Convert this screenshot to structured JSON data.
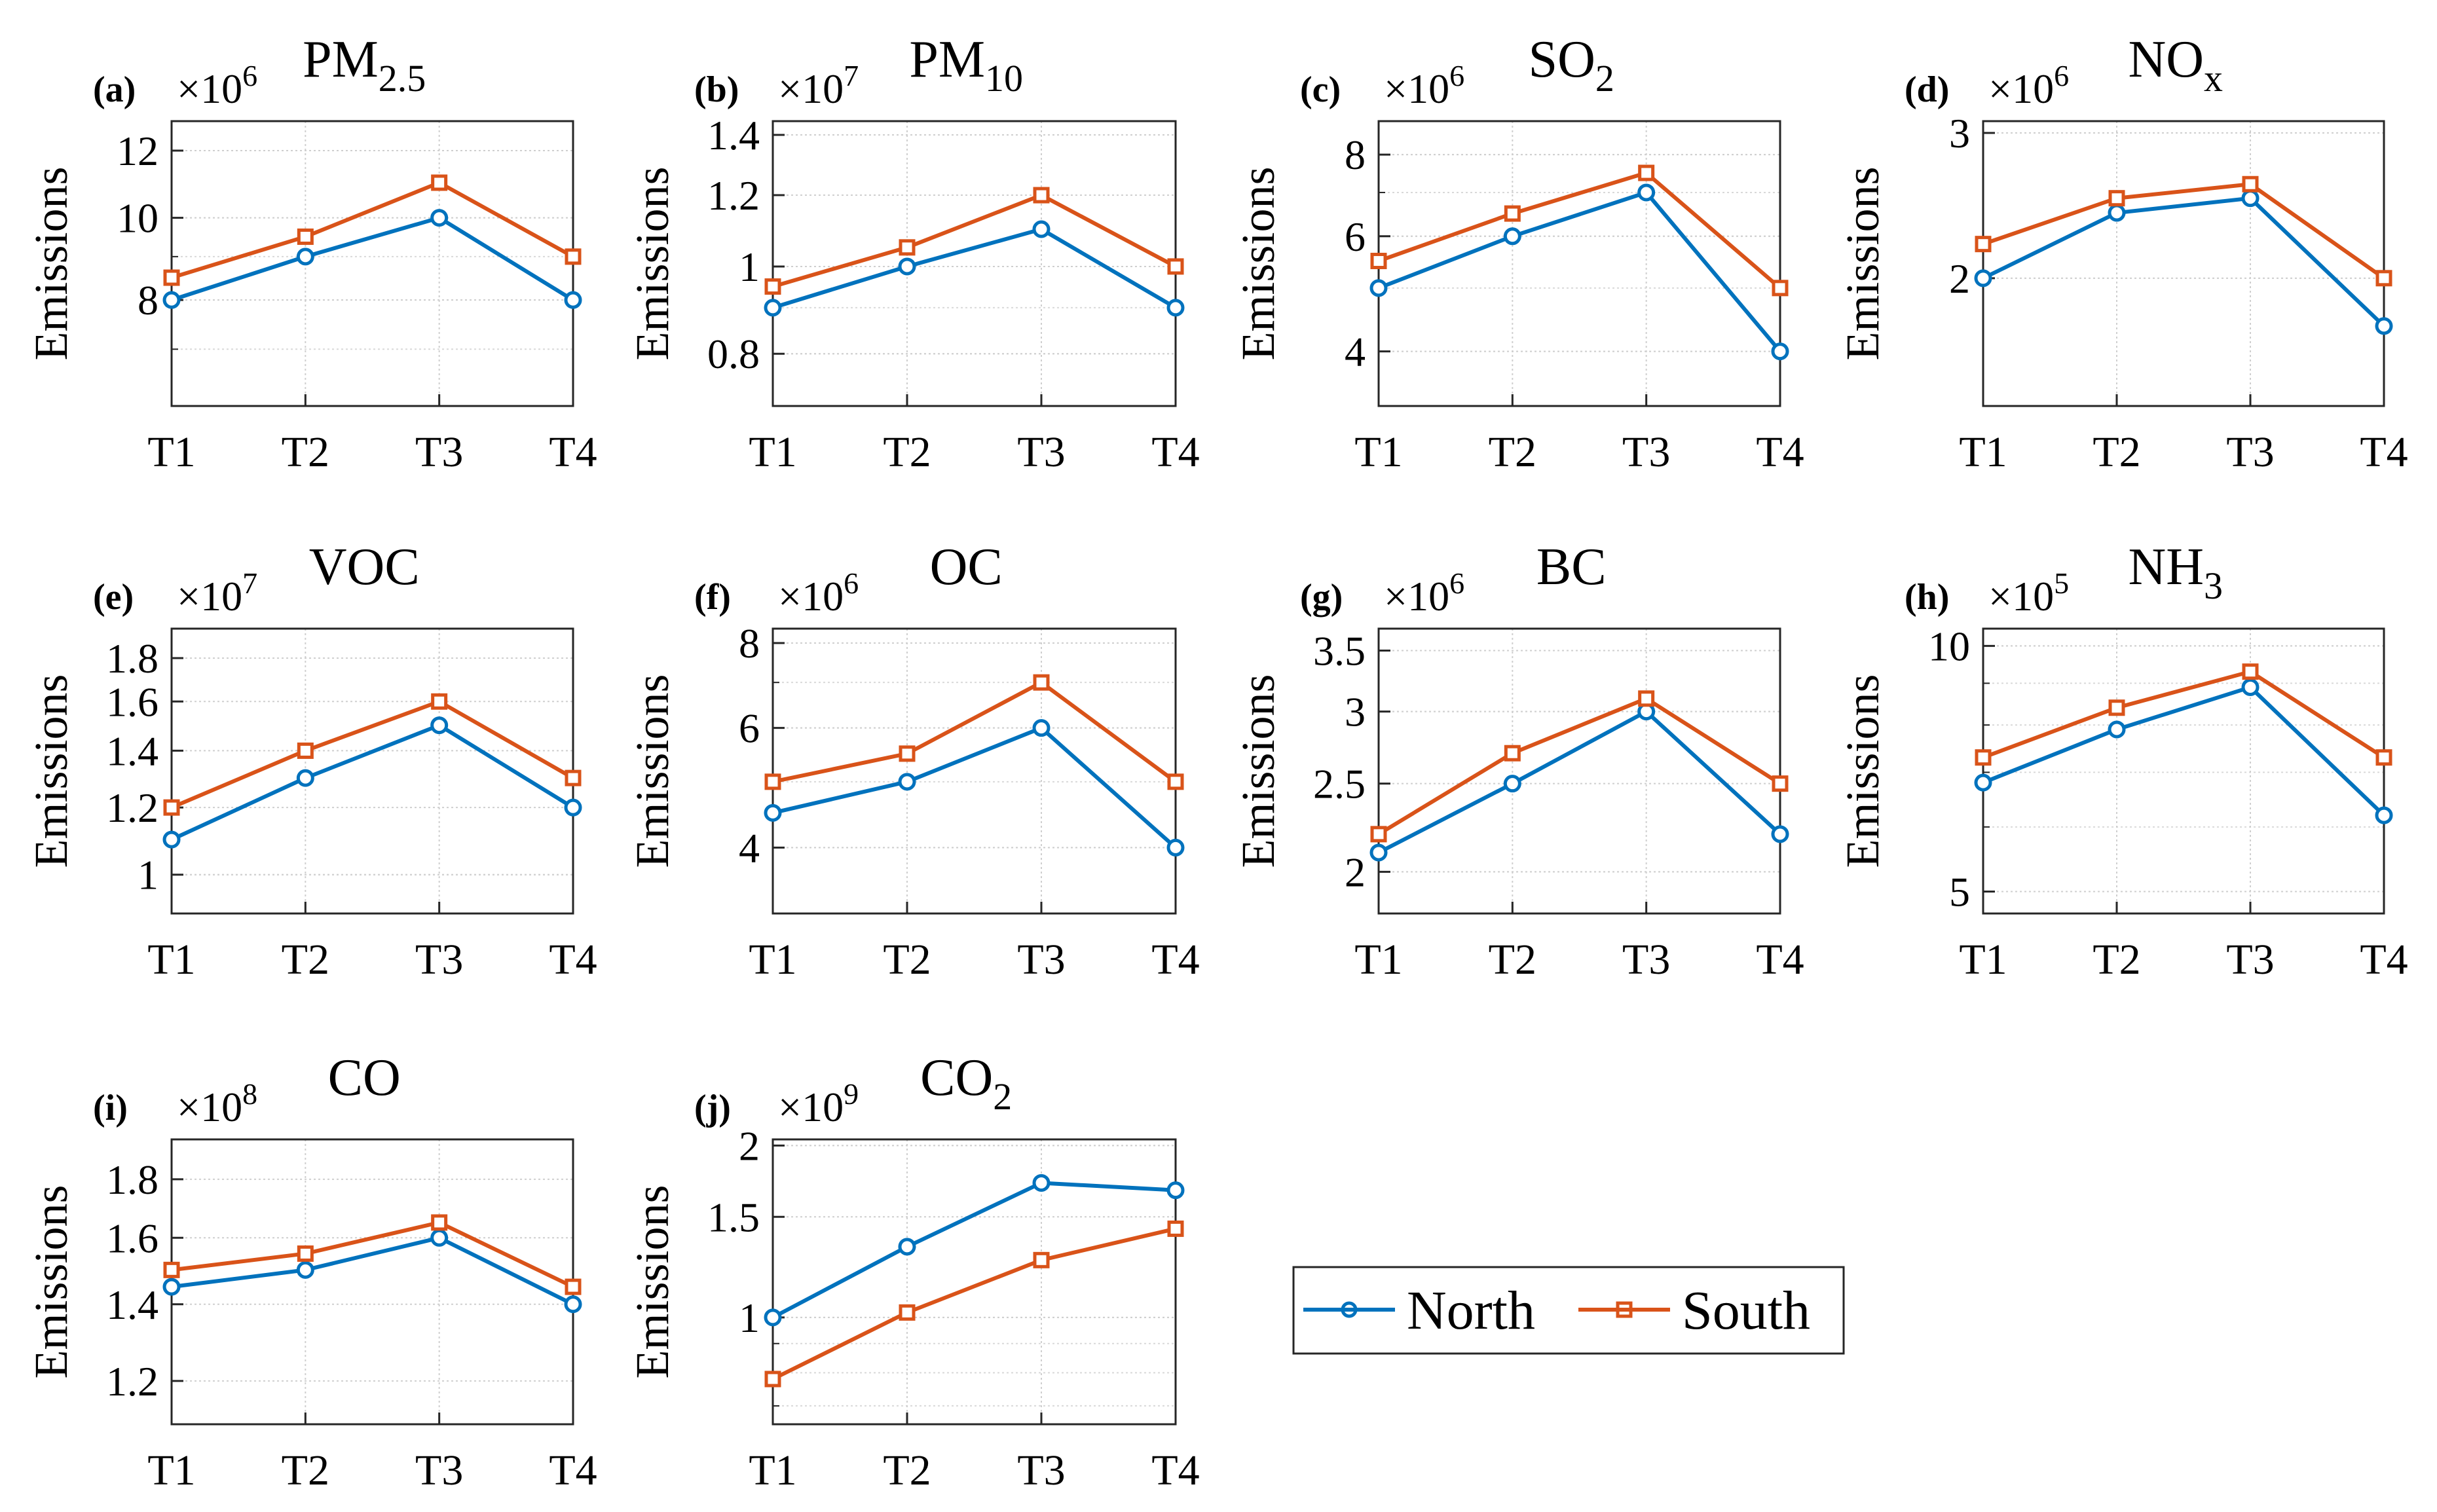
{
  "colors": {
    "north": "#0072BD",
    "south": "#D95319",
    "axis": "#262626",
    "grid": "#D9D9D9"
  },
  "legend": {
    "items": [
      "North",
      "South"
    ]
  },
  "chart_data": [
    {
      "type": "line",
      "panel_label": "(a)",
      "title": "PM",
      "title_sub": "2.5",
      "exponent_label": "×10",
      "exponent_power": "6",
      "ylabel": "Emissions",
      "categories": [
        "T1",
        "T2",
        "T3",
        "T4"
      ],
      "ylim": [
        6,
        13
      ],
      "yticks": [
        8,
        10,
        12
      ],
      "scale": "log",
      "grid": true,
      "series": [
        {
          "name": "North",
          "values": [
            8.0,
            9.0,
            10.0,
            8.0
          ]
        },
        {
          "name": "South",
          "values": [
            8.5,
            9.5,
            11.0,
            9.0
          ]
        }
      ]
    },
    {
      "type": "line",
      "panel_label": "(b)",
      "title": "PM",
      "title_sub": "10",
      "exponent_label": "×10",
      "exponent_power": "7",
      "ylabel": "Emissions",
      "categories": [
        "T1",
        "T2",
        "T3",
        "T4"
      ],
      "ylim": [
        0.7,
        1.45
      ],
      "yticks": [
        0.8,
        1.0,
        1.2,
        1.4
      ],
      "ytick_labels": [
        "0.8",
        "1",
        "1.2",
        "1.4"
      ],
      "scale": "log",
      "grid": true,
      "series": [
        {
          "name": "North",
          "values": [
            0.9,
            1.0,
            1.1,
            0.9
          ]
        },
        {
          "name": "South",
          "values": [
            0.95,
            1.05,
            1.2,
            1.0
          ]
        }
      ]
    },
    {
      "type": "line",
      "panel_label": "(c)",
      "title": "SO",
      "title_sub": "2",
      "exponent_label": "×10",
      "exponent_power": "6",
      "ylabel": "Emissions",
      "categories": [
        "T1",
        "T2",
        "T3",
        "T4"
      ],
      "ylim": [
        3.3,
        9.0
      ],
      "yticks": [
        4,
        6,
        8
      ],
      "scale": "log",
      "grid": true,
      "series": [
        {
          "name": "North",
          "values": [
            5.0,
            6.0,
            7.0,
            4.0
          ]
        },
        {
          "name": "South",
          "values": [
            5.5,
            6.5,
            7.5,
            5.0
          ]
        }
      ]
    },
    {
      "type": "line",
      "panel_label": "(d)",
      "title": "NO",
      "title_sub": "x",
      "exponent_label": "×10",
      "exponent_power": "6",
      "ylabel": "Emissions",
      "categories": [
        "T1",
        "T2",
        "T3",
        "T4"
      ],
      "ylim": [
        1.4,
        3.1
      ],
      "yticks": [
        2,
        3
      ],
      "scale": "log",
      "grid": true,
      "series": [
        {
          "name": "North",
          "values": [
            2.0,
            2.4,
            2.5,
            1.75
          ]
        },
        {
          "name": "South",
          "values": [
            2.2,
            2.5,
            2.6,
            2.0
          ]
        }
      ]
    },
    {
      "type": "line",
      "panel_label": "(e)",
      "title": "VOC",
      "title_sub": "",
      "exponent_label": "×10",
      "exponent_power": "7",
      "ylabel": "Emissions",
      "categories": [
        "T1",
        "T2",
        "T3",
        "T4"
      ],
      "ylim": [
        0.9,
        1.95
      ],
      "yticks": [
        1.0,
        1.2,
        1.4,
        1.6,
        1.8
      ],
      "ytick_labels": [
        "1",
        "1.2",
        "1.4",
        "1.6",
        "1.8"
      ],
      "scale": "log",
      "grid": true,
      "series": [
        {
          "name": "North",
          "values": [
            1.1,
            1.3,
            1.5,
            1.2
          ]
        },
        {
          "name": "South",
          "values": [
            1.2,
            1.4,
            1.6,
            1.3
          ]
        }
      ]
    },
    {
      "type": "line",
      "panel_label": "(f)",
      "title": "OC",
      "title_sub": "",
      "exponent_label": "×10",
      "exponent_power": "6",
      "ylabel": "Emissions",
      "categories": [
        "T1",
        "T2",
        "T3",
        "T4"
      ],
      "ylim": [
        3.2,
        8.4
      ],
      "yticks": [
        4,
        6,
        8
      ],
      "scale": "log",
      "grid": true,
      "series": [
        {
          "name": "North",
          "values": [
            4.5,
            5.0,
            6.0,
            4.0
          ]
        },
        {
          "name": "South",
          "values": [
            5.0,
            5.5,
            7.0,
            5.0
          ]
        }
      ]
    },
    {
      "type": "line",
      "panel_label": "(g)",
      "title": "BC",
      "title_sub": "",
      "exponent_label": "×10",
      "exponent_power": "6",
      "ylabel": "Emissions",
      "categories": [
        "T1",
        "T2",
        "T3",
        "T4"
      ],
      "ylim": [
        1.8,
        3.7
      ],
      "yticks": [
        2.0,
        2.5,
        3.0,
        3.5
      ],
      "ytick_labels": [
        "2",
        "2.5",
        "3",
        "3.5"
      ],
      "scale": "log",
      "grid": true,
      "series": [
        {
          "name": "North",
          "values": [
            2.1,
            2.5,
            3.0,
            2.2
          ]
        },
        {
          "name": "South",
          "values": [
            2.2,
            2.7,
            3.1,
            2.5
          ]
        }
      ]
    },
    {
      "type": "line",
      "panel_label": "(h)",
      "title": "NH",
      "title_sub": "3",
      "exponent_label": "×10",
      "exponent_power": "5",
      "ylabel": "Emissions",
      "categories": [
        "T1",
        "T2",
        "T3",
        "T4"
      ],
      "ylim": [
        4.7,
        10.5
      ],
      "yticks": [
        5,
        10
      ],
      "scale": "log",
      "grid": true,
      "series": [
        {
          "name": "North",
          "values": [
            6.8,
            7.9,
            8.9,
            6.2
          ]
        },
        {
          "name": "South",
          "values": [
            7.3,
            8.4,
            9.3,
            7.3
          ]
        }
      ]
    },
    {
      "type": "line",
      "panel_label": "(i)",
      "title": "CO",
      "title_sub": "",
      "exponent_label": "×10",
      "exponent_power": "8",
      "ylabel": "Emissions",
      "categories": [
        "T1",
        "T2",
        "T3",
        "T4"
      ],
      "ylim": [
        1.1,
        1.95
      ],
      "yticks": [
        1.2,
        1.4,
        1.6,
        1.8
      ],
      "scale": "log",
      "grid": true,
      "series": [
        {
          "name": "North",
          "values": [
            1.45,
            1.5,
            1.6,
            1.4
          ]
        },
        {
          "name": "South",
          "values": [
            1.5,
            1.55,
            1.65,
            1.45
          ]
        }
      ]
    },
    {
      "type": "line",
      "panel_label": "(j)",
      "title": "CO",
      "title_sub": "2",
      "exponent_label": "×10",
      "exponent_power": "9",
      "ylabel": "Emissions",
      "categories": [
        "T1",
        "T2",
        "T3",
        "T4"
      ],
      "ylim": [
        0.65,
        2.05
      ],
      "yticks": [
        1.0,
        1.5,
        2.0
      ],
      "ytick_labels": [
        "1",
        "1.5",
        "2"
      ],
      "scale": "log",
      "grid": true,
      "series": [
        {
          "name": "North",
          "values": [
            1.0,
            1.33,
            1.72,
            1.67
          ]
        },
        {
          "name": "South",
          "values": [
            0.78,
            1.02,
            1.26,
            1.43
          ]
        }
      ]
    }
  ]
}
